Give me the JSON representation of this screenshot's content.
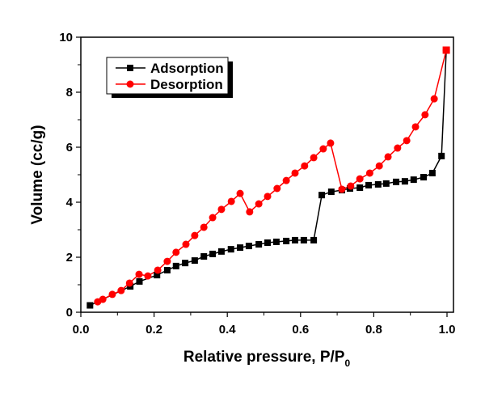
{
  "chart_data": {
    "type": "line",
    "title": "",
    "xlabel": "Relative pressure, P/P",
    "xlabel_subscript": "0",
    "ylabel": "Volume (cc/g)",
    "xlim": [
      0.0,
      1.02
    ],
    "ylim": [
      0,
      10
    ],
    "x_ticks": [
      0.0,
      0.2,
      0.4,
      0.6,
      0.8,
      1.0
    ],
    "x_tick_labels": [
      "0.0",
      "0.2",
      "0.4",
      "0.6",
      "0.8",
      "1.0"
    ],
    "y_ticks": [
      0,
      2,
      4,
      6,
      8,
      10
    ],
    "y_tick_labels": [
      "0",
      "2",
      "4",
      "6",
      "8",
      "10"
    ],
    "grid": false,
    "legend_position": "top-left",
    "series": [
      {
        "name": "Adsorption",
        "color": "#000000",
        "marker": "square",
        "x": [
          0.025,
          0.135,
          0.16,
          0.208,
          0.236,
          0.26,
          0.285,
          0.311,
          0.336,
          0.36,
          0.384,
          0.41,
          0.435,
          0.459,
          0.486,
          0.51,
          0.534,
          0.561,
          0.585,
          0.609,
          0.636,
          0.658,
          0.684,
          0.713,
          0.735,
          0.762,
          0.786,
          0.812,
          0.834,
          0.861,
          0.885,
          0.909,
          0.936,
          0.96,
          0.985,
          0.998
        ],
        "y": [
          0.25,
          0.94,
          1.12,
          1.35,
          1.53,
          1.68,
          1.79,
          1.88,
          2.03,
          2.12,
          2.21,
          2.29,
          2.35,
          2.41,
          2.47,
          2.53,
          2.56,
          2.59,
          2.62,
          2.62,
          2.62,
          4.26,
          4.38,
          4.44,
          4.5,
          4.53,
          4.62,
          4.65,
          4.68,
          4.74,
          4.76,
          4.82,
          4.91,
          5.06,
          5.68,
          9.53
        ]
      },
      {
        "name": "Desorption",
        "color": "#ff0000",
        "marker": "circle",
        "x": [
          0.998,
          0.965,
          0.94,
          0.914,
          0.89,
          0.865,
          0.839,
          0.815,
          0.789,
          0.762,
          0.737,
          0.713,
          0.682,
          0.662,
          0.636,
          0.611,
          0.585,
          0.561,
          0.536,
          0.51,
          0.486,
          0.461,
          0.435,
          0.411,
          0.384,
          0.36,
          0.336,
          0.311,
          0.287,
          0.26,
          0.236,
          0.21,
          0.183,
          0.159,
          0.133,
          0.11,
          0.086,
          0.06,
          0.046
        ],
        "y": [
          9.53,
          7.76,
          7.18,
          6.74,
          6.24,
          5.97,
          5.65,
          5.32,
          5.06,
          4.85,
          4.59,
          4.47,
          6.15,
          5.94,
          5.62,
          5.32,
          5.06,
          4.79,
          4.5,
          4.21,
          3.94,
          3.65,
          4.32,
          4.03,
          3.74,
          3.44,
          3.09,
          2.79,
          2.47,
          2.18,
          1.85,
          1.53,
          1.32,
          1.38,
          1.06,
          0.79,
          0.65,
          0.47,
          0.38
        ]
      }
    ]
  },
  "legend": {
    "items": [
      {
        "label": "Adsorption",
        "color": "#000000",
        "marker": "square"
      },
      {
        "label": "Desorption",
        "color": "#ff0000",
        "marker": "circle"
      }
    ]
  }
}
